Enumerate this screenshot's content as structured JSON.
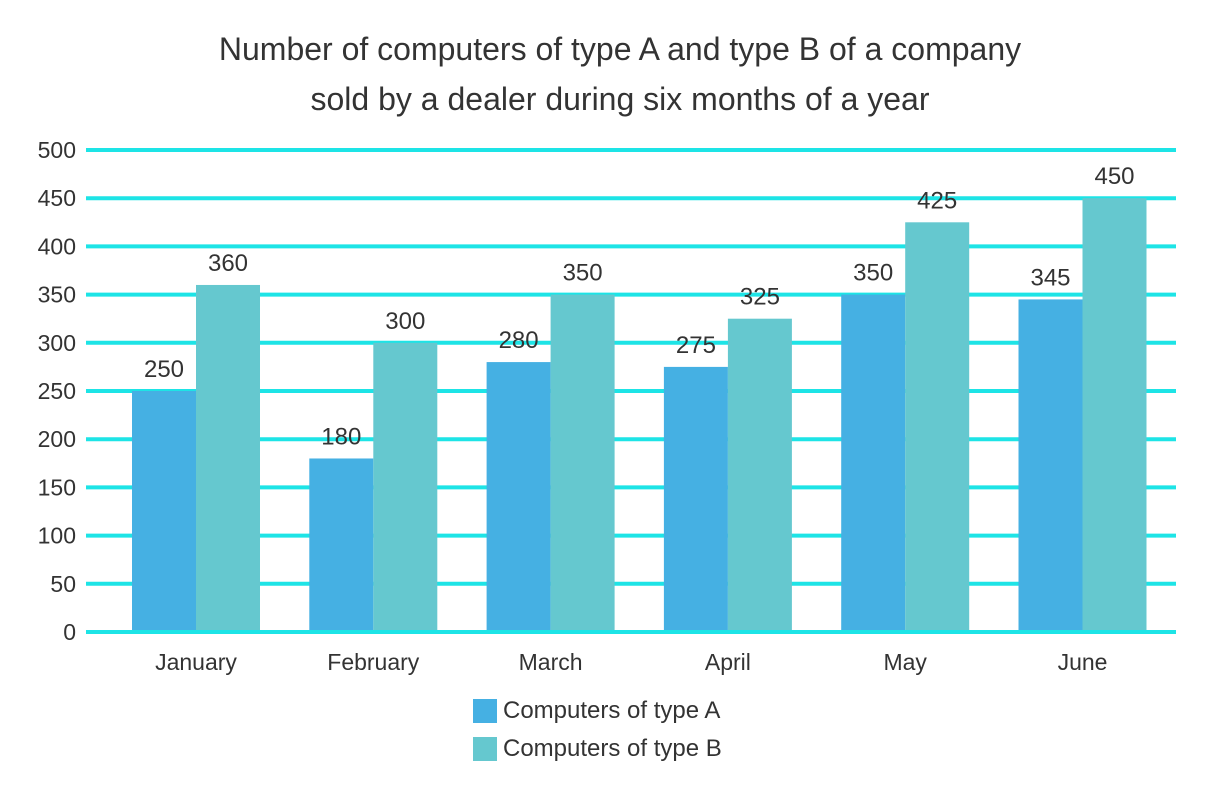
{
  "chart_data": {
    "type": "bar",
    "title": [
      "Number of computers of type A and type B of a company",
      "sold by a dealer during six months of a year"
    ],
    "categories": [
      "January",
      "February",
      "March",
      "April",
      "May",
      "June"
    ],
    "series": [
      {
        "name": "Computers of type A",
        "values": [
          250,
          180,
          280,
          275,
          350,
          345
        ],
        "color": "#45b0e3"
      },
      {
        "name": "Computers of type B",
        "values": [
          360,
          300,
          350,
          325,
          425,
          450
        ],
        "color": "#65c8cf"
      }
    ],
    "yticks": [
      "0",
      "50",
      "100",
      "150",
      "200",
      "250",
      "300",
      "350",
      "400",
      "450",
      "500"
    ],
    "ylim": [
      0,
      500
    ],
    "grid": true,
    "gridColor": "#1de4e6",
    "legend": "bottom"
  }
}
